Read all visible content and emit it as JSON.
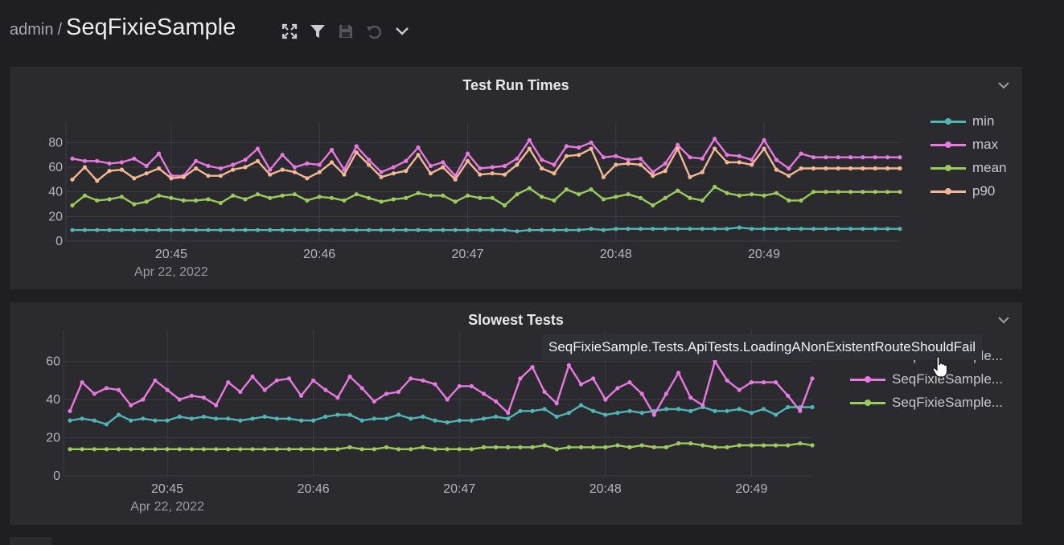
{
  "header": {
    "breadcrumb": "admin",
    "separator": "/",
    "title": "SeqFixieSample"
  },
  "toolbar": {
    "buttons": [
      "expand-icon",
      "filter-icon",
      "save-icon",
      "undo-icon",
      "chevron-down-icon"
    ]
  },
  "colors": {
    "min": "#4fb5b5",
    "max": "#e879e0",
    "mean": "#9bcb5a",
    "p90": "#f4b894"
  },
  "panels": [
    {
      "title": "Test Run Times",
      "legend": [
        "min",
        "max",
        "mean",
        "p90"
      ],
      "chart_data": {
        "type": "line",
        "title": "Test Run Times",
        "x_start": "20:44:20",
        "x_step_seconds": 5,
        "x_ticks": [
          "20:45",
          "20:46",
          "20:47",
          "20:48",
          "20:49"
        ],
        "x_date_label": "Apr 22, 2022",
        "ylim": [
          0,
          90
        ],
        "y_ticks": [
          0,
          20,
          40,
          60,
          80
        ],
        "grid": true,
        "legend_position": "right",
        "series": [
          {
            "name": "min",
            "values": [
              9,
              9,
              9,
              9,
              9,
              9,
              9,
              9,
              9,
              9,
              9,
              9,
              9,
              9,
              9,
              9,
              9,
              9,
              9,
              9,
              9,
              9,
              9,
              9,
              9,
              9,
              9,
              9,
              9,
              9,
              9,
              9,
              9,
              9,
              9,
              9,
              8,
              9,
              9,
              9,
              9,
              9,
              10,
              9,
              10,
              10,
              10,
              10,
              10,
              10,
              10,
              10,
              10,
              10,
              11,
              10,
              10,
              10,
              10,
              10,
              10,
              10,
              10,
              10,
              10,
              10,
              10,
              10
            ]
          },
          {
            "name": "max",
            "values": [
              67,
              65,
              65,
              63,
              64,
              67,
              61,
              71,
              53,
              53,
              65,
              61,
              59,
              62,
              66,
              75,
              58,
              70,
              60,
              63,
              62,
              74,
              58,
              77,
              66,
              56,
              60,
              65,
              76,
              61,
              64,
              53,
              71,
              59,
              60,
              61,
              67,
              82,
              66,
              62,
              77,
              76,
              80,
              68,
              69,
              66,
              67,
              56,
              63,
              78,
              68,
              67,
              83,
              70,
              69,
              66,
              82,
              66,
              59,
              71,
              68,
              68,
              68,
              68,
              68,
              68,
              68,
              68
            ]
          },
          {
            "name": "mean",
            "values": [
              29,
              37,
              33,
              34,
              36,
              30,
              32,
              37,
              35,
              33,
              33,
              34,
              31,
              37,
              34,
              38,
              35,
              37,
              38,
              33,
              36,
              35,
              33,
              38,
              35,
              32,
              34,
              35,
              39,
              37,
              37,
              32,
              37,
              35,
              35,
              29,
              38,
              43,
              36,
              33,
              42,
              38,
              42,
              34,
              36,
              38,
              35,
              29,
              35,
              41,
              35,
              33,
              44,
              39,
              37,
              38,
              37,
              39,
              33,
              33,
              40,
              40,
              40,
              40,
              40,
              40,
              40,
              40
            ]
          },
          {
            "name": "p90",
            "values": [
              50,
              60,
              49,
              57,
              58,
              51,
              55,
              59,
              51,
              52,
              59,
              53,
              53,
              58,
              60,
              65,
              54,
              58,
              56,
              51,
              56,
              64,
              54,
              72,
              62,
              52,
              55,
              57,
              70,
              55,
              60,
              50,
              65,
              54,
              55,
              54,
              62,
              75,
              59,
              55,
              69,
              70,
              75,
              52,
              62,
              63,
              62,
              53,
              57,
              75,
              52,
              56,
              75,
              64,
              64,
              62,
              75,
              58,
              53,
              59,
              59,
              59,
              59,
              59,
              59,
              59,
              59,
              59
            ]
          }
        ]
      }
    },
    {
      "title": "Slowest Tests",
      "legend": [
        "SeqFixieSample...",
        "SeqFixieSample...",
        "SeqFixieSample..."
      ],
      "tooltip": "SeqFixieSample.Tests.ApiTests.LoadingANonExistentRouteShouldFail",
      "chart_data": {
        "type": "line",
        "title": "Slowest Tests",
        "x_start": "20:44:20",
        "x_step_seconds": 5,
        "x_ticks": [
          "20:45",
          "20:46",
          "20:47",
          "20:48",
          "20:49"
        ],
        "x_date_label": "Apr 22, 2022",
        "ylim": [
          0,
          72
        ],
        "y_ticks": [
          0,
          20,
          40,
          60
        ],
        "grid": true,
        "legend_position": "right",
        "series": [
          {
            "name": "SeqFixieSample...",
            "values": [
              29,
              30,
              29,
              27,
              32,
              29,
              30,
              29,
              29,
              31,
              30,
              31,
              30,
              30,
              29,
              30,
              31,
              30,
              30,
              29,
              29,
              31,
              32,
              32,
              29,
              30,
              30,
              32,
              30,
              31,
              29,
              28,
              29,
              29,
              30,
              31,
              30,
              34,
              34,
              35,
              31,
              33,
              37,
              34,
              32,
              33,
              34,
              33,
              34,
              35,
              35,
              34,
              36,
              34,
              34,
              35,
              33,
              35,
              32,
              36,
              36,
              36
            ]
          },
          {
            "name": "SeqFixieSample...",
            "values": [
              34,
              49,
              43,
              46,
              45,
              37,
              40,
              50,
              45,
              40,
              42,
              41,
              37,
              49,
              44,
              52,
              45,
              50,
              51,
              42,
              50,
              45,
              41,
              52,
              46,
              39,
              43,
              44,
              51,
              50,
              48,
              40,
              47,
              47,
              43,
              39,
              33,
              51,
              57,
              44,
              38,
              58,
              48,
              51,
              40,
              46,
              49,
              43,
              32,
              43,
              54,
              41,
              37,
              60,
              50,
              45,
              49,
              49,
              49,
              42,
              34,
              51
            ]
          },
          {
            "name": "SeqFixieSample...",
            "values": [
              14,
              14,
              14,
              14,
              14,
              14,
              14,
              14,
              14,
              14,
              14,
              14,
              14,
              14,
              14,
              14,
              14,
              14,
              14,
              14,
              14,
              14,
              14,
              15,
              14,
              14,
              15,
              14,
              14,
              15,
              14,
              14,
              14,
              14,
              15,
              15,
              15,
              15,
              15,
              16,
              14,
              15,
              15,
              15,
              15,
              16,
              15,
              16,
              15,
              15,
              17,
              17,
              16,
              15,
              15,
              16,
              16,
              16,
              16,
              16,
              17,
              16
            ]
          }
        ]
      }
    }
  ]
}
